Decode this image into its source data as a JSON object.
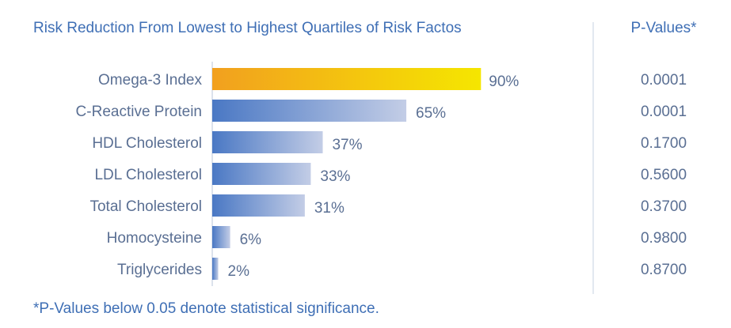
{
  "chart_data": {
    "type": "bar",
    "orientation": "horizontal",
    "title": "Risk Reduction From Lowest to Highest Quartiles of Risk Factos",
    "pvalues_header": "P-Values*",
    "categories": [
      "Omega-3 Index",
      "C-Reactive Protein",
      "HDL Cholesterol",
      "LDL Cholesterol",
      "Total Cholesterol",
      "Homocysteine",
      "Triglycerides"
    ],
    "values": [
      90,
      65,
      37,
      33,
      31,
      6,
      2
    ],
    "value_labels": [
      "90%",
      "65%",
      "37%",
      "33%",
      "31%",
      "6%",
      "2%"
    ],
    "p_values": [
      "0.0001",
      "0.0001",
      "0.1700",
      "0.5600",
      "0.3700",
      "0.9800",
      "0.8700"
    ],
    "xlim": [
      0,
      100
    ],
    "grid": false,
    "legend": "none",
    "footnote": "*P-Values below 0.05 denote statistical significance.",
    "colors": {
      "title": "#3f6fb5",
      "text": "#5a6f93",
      "highlight_start": "#f2a01f",
      "highlight_end": "#f5e600",
      "bar_start": "#4a78c4",
      "bar_end": "#c3cde6",
      "axis": "#b8c4d8",
      "divider": "#c5d0e0"
    }
  }
}
